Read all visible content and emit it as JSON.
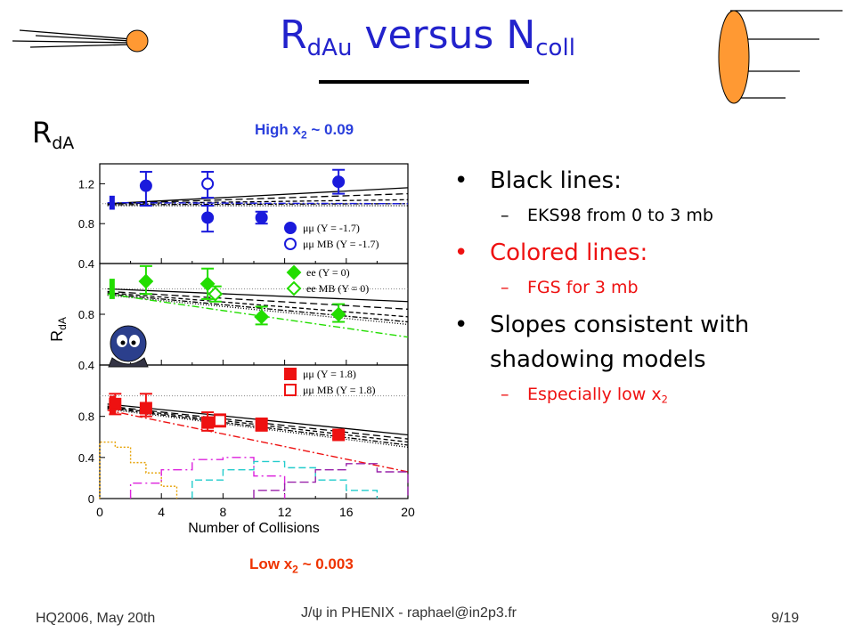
{
  "slide": {
    "title_main": "R",
    "title_sub": "dAu",
    "title_mid": " versus N",
    "title_sub2": "coll",
    "rda_label": "R",
    "rda_sub": "dA",
    "high_x2_pre": "High x",
    "high_x2_sub": "2",
    "high_x2_post": " ~ 0.09",
    "low_x2_pre": "Low x",
    "low_x2_sub": "2",
    "low_x2_post": " ~ 0.003",
    "footer_left": "HQ2006, May 20th",
    "footer_center": "J/ψ in PHENIX - raphael@in2p3.fr",
    "footer_right": "9/19"
  },
  "bullets": [
    {
      "text": "Black lines:",
      "sub": "EKS98 from 0 to 3 mb"
    },
    {
      "text": "Colored lines:",
      "sub": "FGS for 3 mb"
    },
    {
      "text": "Slopes consistent with shadowing models",
      "sub_pre": "Especially low x",
      "sub_sub": "2"
    }
  ],
  "colors": {
    "title": "#2222cc",
    "blue": "#1a1adc",
    "green": "#22dd00",
    "red": "#ee1111",
    "orange": "#ff9933",
    "high_label": "#2a3fdc",
    "low_label": "#ee3300"
  },
  "chart_data": {
    "type": "scatter",
    "xlabel": "Number of Collisions",
    "ylabel": "R",
    "ylabel_sub": "dA",
    "xlim": [
      0,
      20
    ],
    "x_ticks": [
      "0",
      "4",
      "8",
      "12",
      "16",
      "20"
    ],
    "panels": [
      {
        "ylim": [
          0.4,
          1.4
        ],
        "y_ticks": [
          "0.4",
          "0.8",
          "1.2"
        ],
        "color": "#1a1adc",
        "marker": "circle",
        "series": [
          {
            "name": "μμ (Y = -1.7)",
            "filled": true,
            "points": [
              {
                "x": 3,
                "y": 1.18,
                "lo": 0.98,
                "hi": 1.32
              },
              {
                "x": 7,
                "y": 0.86,
                "lo": 0.72,
                "hi": 0.98
              },
              {
                "x": 10.5,
                "y": 0.86,
                "lo": 0.8,
                "hi": 0.92
              },
              {
                "x": 15.5,
                "y": 1.22,
                "lo": 1.1,
                "hi": 1.34
              }
            ]
          },
          {
            "name": "μμ MB (Y = -1.7)",
            "filled": false,
            "points": [
              {
                "x": 7,
                "y": 1.2,
                "lo": 1.06,
                "hi": 1.32
              }
            ]
          }
        ],
        "sys_box": {
          "x": 0.8,
          "y": 1.02,
          "lo": 0.94,
          "hi": 1.08
        },
        "eks_lines": [
          [
            1.0,
            1.16
          ],
          [
            1.0,
            1.1
          ],
          [
            1.0,
            1.04
          ],
          [
            0.99,
            1.0
          ],
          [
            0.98,
            0.98
          ]
        ],
        "fgs_line": [
          1.01,
          1.0
        ]
      },
      {
        "ylim": [
          0.4,
          1.2
        ],
        "y_ticks": [
          "0.4",
          "0.8"
        ],
        "color": "#22dd00",
        "marker": "diamond",
        "series": [
          {
            "name": "ee (Y = 0)",
            "filled": true,
            "points": [
              {
                "x": 3,
                "y": 1.06,
                "lo": 0.96,
                "hi": 1.18
              },
              {
                "x": 7,
                "y": 1.04,
                "lo": 0.92,
                "hi": 1.16
              },
              {
                "x": 10.5,
                "y": 0.78,
                "lo": 0.72,
                "hi": 0.86
              },
              {
                "x": 15.5,
                "y": 0.8,
                "lo": 0.74,
                "hi": 0.88
              }
            ]
          },
          {
            "name": "ee MB (Y = 0)",
            "filled": false,
            "points": [
              {
                "x": 7.5,
                "y": 0.96,
                "lo": 0.9,
                "hi": 1.02
              }
            ]
          }
        ],
        "sys_box": {
          "x": 0.8,
          "y": 1.0,
          "lo": 0.92,
          "hi": 1.08
        },
        "eks_lines": [
          [
            1.0,
            0.9
          ],
          [
            0.98,
            0.84
          ],
          [
            0.97,
            0.78
          ],
          [
            0.96,
            0.74
          ],
          [
            0.95,
            0.72
          ]
        ],
        "fgs_line": [
          0.96,
          0.62
        ]
      },
      {
        "ylim": [
          0.0,
          1.3
        ],
        "y_ticks": [
          "0",
          "0.4",
          "0.8"
        ],
        "color": "#ee1111",
        "marker": "square",
        "series": [
          {
            "name": "μμ (Y = 1.8)",
            "filled": true,
            "points": [
              {
                "x": 1,
                "y": 0.92,
                "lo": 0.82,
                "hi": 1.02
              },
              {
                "x": 3,
                "y": 0.88,
                "lo": 0.8,
                "hi": 1.02
              },
              {
                "x": 7,
                "y": 0.74,
                "lo": 0.66,
                "hi": 0.84
              },
              {
                "x": 10.5,
                "y": 0.72,
                "lo": 0.66,
                "hi": 0.78
              },
              {
                "x": 15.5,
                "y": 0.62,
                "lo": 0.58,
                "hi": 0.66
              }
            ]
          },
          {
            "name": "μμ MB (Y = 1.8)",
            "filled": false,
            "points": [
              {
                "x": 7.8,
                "y": 0.76,
                "lo": 0.7,
                "hi": 0.82
              }
            ]
          }
        ],
        "sys_box": {
          "x": 0.8,
          "y": 0.92,
          "lo": 0.82,
          "hi": 1.0
        },
        "eks_lines": [
          [
            0.92,
            0.62
          ],
          [
            0.9,
            0.58
          ],
          [
            0.89,
            0.55
          ],
          [
            0.88,
            0.52
          ],
          [
            0.87,
            0.5
          ]
        ],
        "fgs_line": [
          0.86,
          0.26
        ],
        "histograms": [
          {
            "color": "#e6a000",
            "dash": "2,2",
            "edges": [
              0,
              1,
              2,
              3,
              4,
              5
            ],
            "values": [
              0.55,
              0.5,
              0.35,
              0.25,
              0.12
            ]
          },
          {
            "color": "#dd22dd",
            "dash": "10,4,2,4",
            "edges": [
              2,
              4,
              6,
              8,
              10,
              12
            ],
            "values": [
              0.15,
              0.28,
              0.38,
              0.4,
              0.22
            ]
          },
          {
            "color": "#22cccc",
            "dash": "8,4",
            "edges": [
              6,
              8,
              10,
              12,
              14,
              16,
              18
            ],
            "values": [
              0.18,
              0.28,
              0.36,
              0.3,
              0.18,
              0.08
            ]
          },
          {
            "color": "#9922aa",
            "dash": "10,4",
            "edges": [
              10,
              12,
              14,
              16,
              18,
              20
            ],
            "values": [
              0.08,
              0.16,
              0.28,
              0.34,
              0.26
            ]
          }
        ]
      }
    ]
  }
}
